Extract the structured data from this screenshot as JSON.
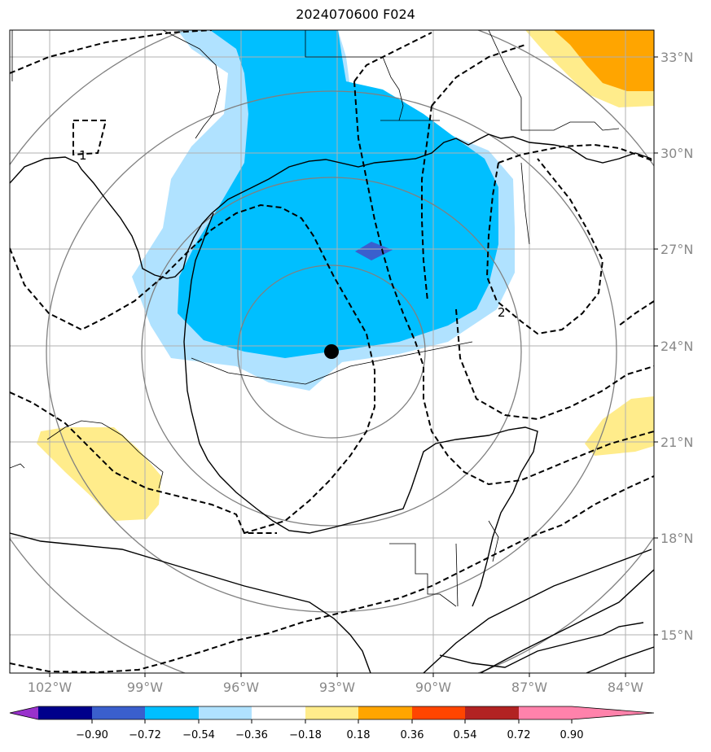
{
  "title": "2024070600 F024",
  "lon_labels": [
    "102°W",
    "99°W",
    "96°W",
    "93°W",
    "90°W",
    "87°W",
    "84°W"
  ],
  "lat_labels": [
    "33°N",
    "30°N",
    "27°N",
    "24°N",
    "21°N",
    "18°N",
    "15°N"
  ],
  "contour_labels": [
    "1",
    "2"
  ],
  "colorbar": {
    "ticks": [
      "−0.90",
      "−0.72",
      "−0.54",
      "−0.36",
      "−0.18",
      "0.18",
      "0.36",
      "0.54",
      "0.72",
      "0.90"
    ],
    "colors": [
      "#9932cc",
      "#00008b",
      "#3a5fcd",
      "#00bfff",
      "#b0e2ff",
      "#ffffff",
      "#ffec8b",
      "#ffa500",
      "#ff4500",
      "#b22222",
      "#ff82ab"
    ]
  },
  "fill_colors": {
    "light_blue": "#b0e2ff",
    "deep_sky_blue": "#00bfff",
    "royal_blue": "#3a5fcd",
    "light_yellow": "#ffec8b",
    "orange": "#ffa500"
  },
  "storm_marker": "storm-center-dot"
}
